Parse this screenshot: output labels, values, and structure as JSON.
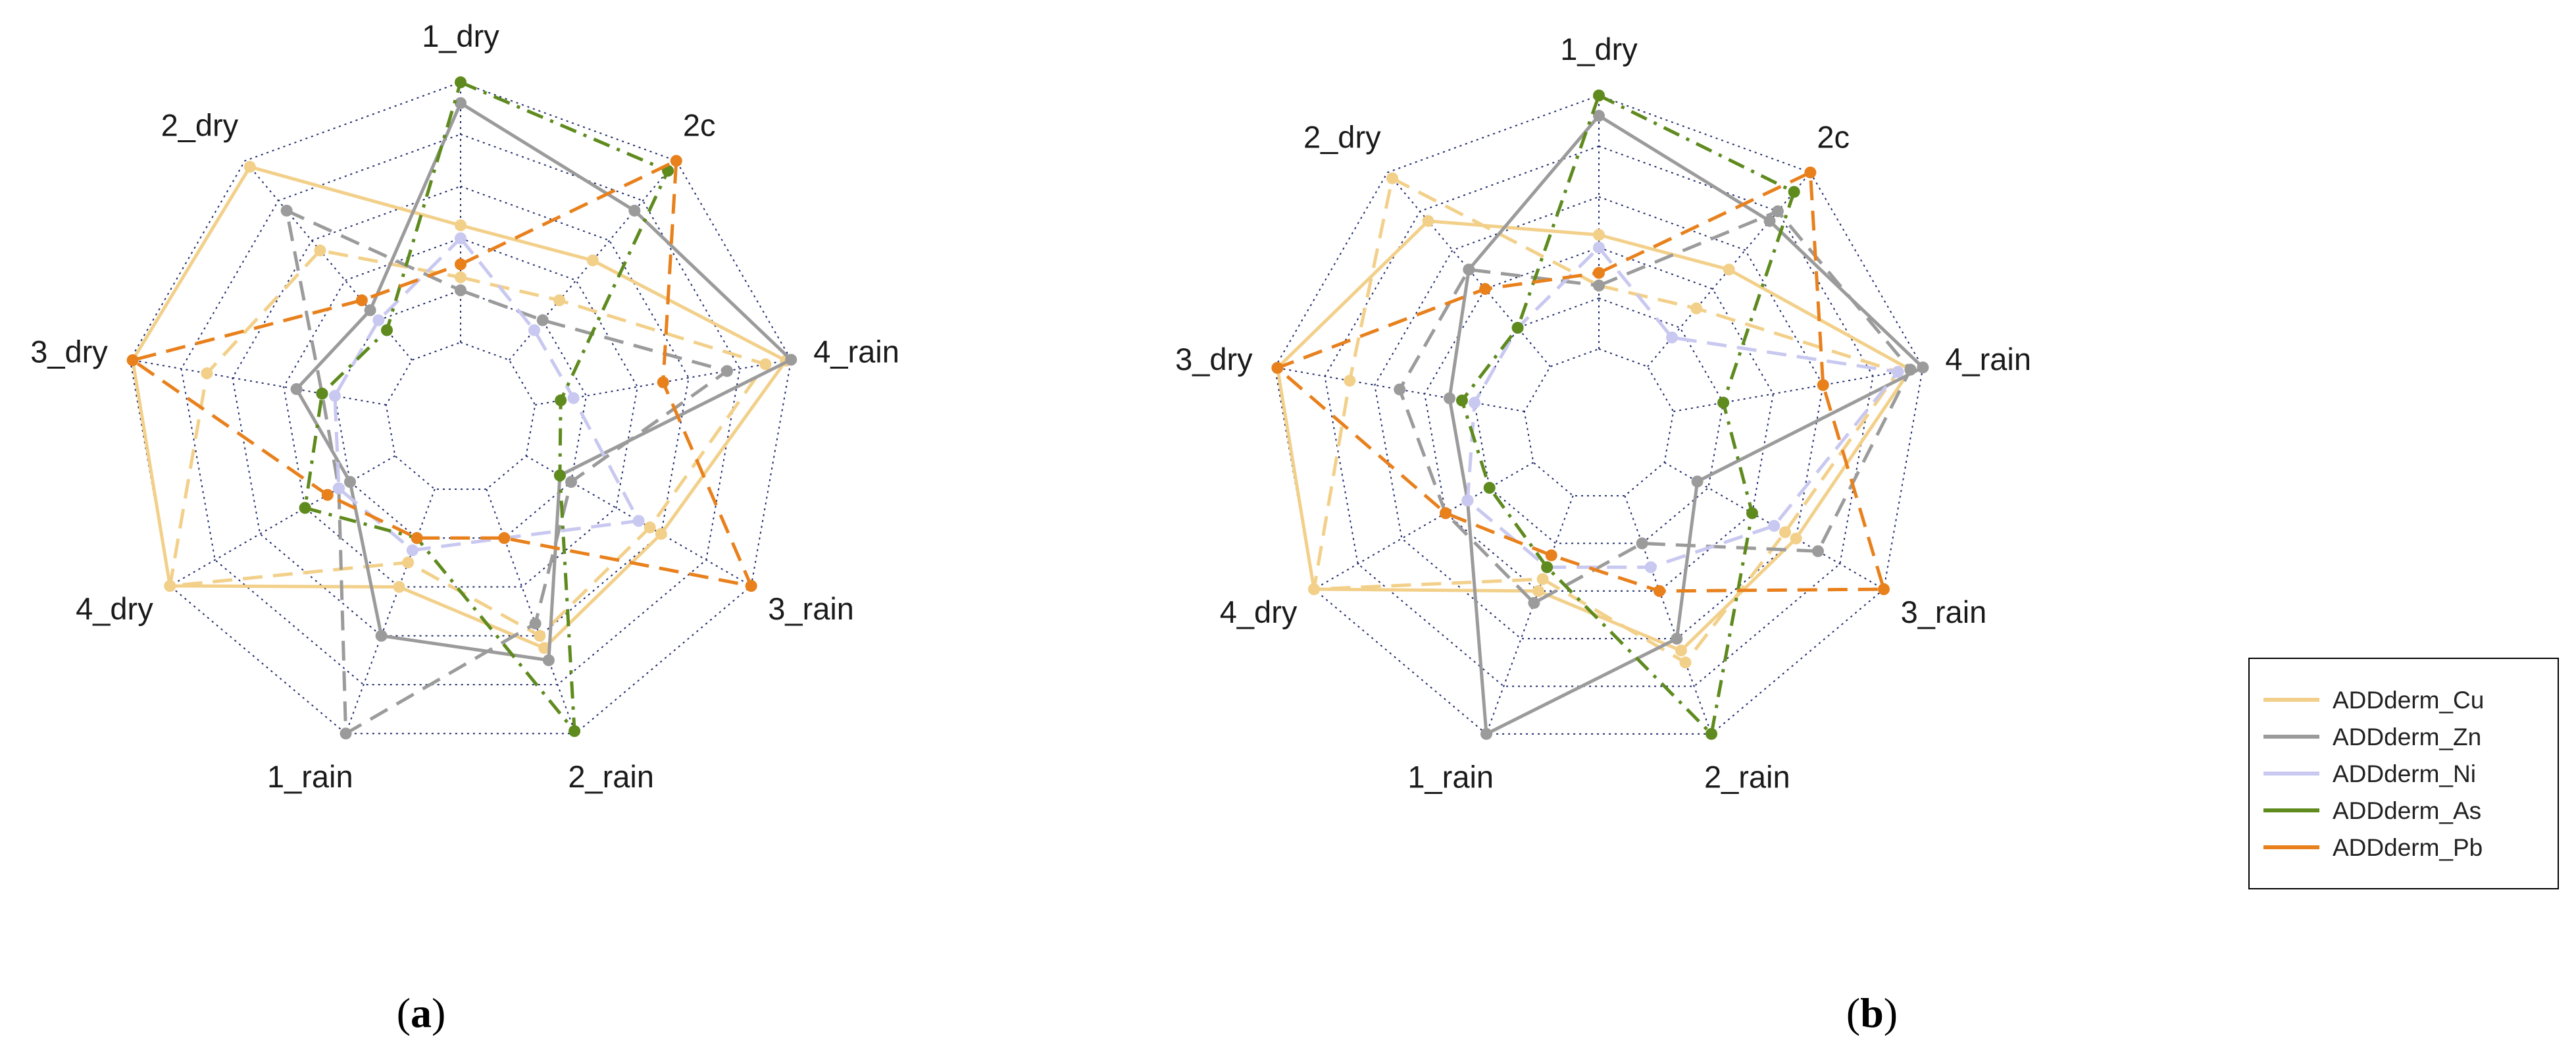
{
  "chart_data": [
    {
      "type": "radar",
      "panel": "(a)",
      "axes": [
        "1_dry",
        "2c",
        "4_rain",
        "3_rain",
        "2_rain",
        "1_rain",
        "4_dry",
        "3_dry",
        "2_dry"
      ],
      "rings": 5,
      "grid": true,
      "series": [
        {
          "name": "ADDderm_Cu",
          "values": [
            0.45,
            0.5,
            0.98,
            0.6,
            0.65,
            0.4,
            1.0,
            0.99,
            0.97
          ],
          "style": "solid"
        },
        {
          "name": "ADDderm_Cu",
          "values": [
            0.25,
            0.3,
            0.9,
            0.55,
            0.6,
            0.3,
            1.0,
            0.7,
            0.55
          ],
          "style": "dashed"
        },
        {
          "name": "ADDderm_Zn",
          "values": [
            0.92,
            0.75,
            1.0,
            0.15,
            0.7,
            0.6,
            0.2,
            0.35,
            0.25
          ],
          "style": "solid"
        },
        {
          "name": "ADDderm_Zn",
          "values": [
            0.2,
            0.2,
            0.75,
            0.2,
            0.55,
            1.0,
            0.25,
            0.25,
            0.75
          ],
          "style": "dashed"
        },
        {
          "name": "ADDderm_Ni",
          "values": [
            0.4,
            0.15,
            0.15,
            0.5,
            0.2,
            0.25,
            0.25,
            0.2,
            0.2
          ],
          "style": "dashed"
        },
        {
          "name": "ADDderm_As",
          "values": [
            1.0,
            0.95,
            0.1,
            0.15,
            0.99,
            0.2,
            0.4,
            0.25,
            0.15
          ],
          "style": "dashdot"
        },
        {
          "name": "ADDderm_Pb",
          "values": [
            0.3,
            1.0,
            0.5,
            1.0,
            0.2,
            0.2,
            0.3,
            0.99,
            0.3
          ],
          "style": "dashed"
        }
      ]
    },
    {
      "type": "radar",
      "panel": "(b)",
      "axes": [
        "1_dry",
        "2c",
        "4_rain",
        "3_rain",
        "2_rain",
        "1_rain",
        "4_dry",
        "3_dry",
        "2_dry"
      ],
      "rings": 5,
      "grid": true,
      "series": [
        {
          "name": "ADDderm_Cu",
          "values": [
            0.45,
            0.5,
            0.95,
            0.6,
            0.65,
            0.4,
            1.0,
            0.99,
            0.75
          ],
          "style": "solid"
        },
        {
          "name": "ADDderm_Cu",
          "values": [
            0.25,
            0.3,
            0.9,
            0.55,
            0.7,
            0.35,
            1.0,
            0.7,
            0.97
          ],
          "style": "dashed"
        },
        {
          "name": "ADDderm_Zn",
          "values": [
            0.92,
            0.75,
            1.0,
            0.15,
            0.6,
            1.0,
            0.3,
            0.3,
            0.5
          ],
          "style": "solid"
        },
        {
          "name": "ADDderm_Zn",
          "values": [
            0.25,
            0.8,
            0.95,
            0.7,
            0.2,
            0.45,
            0.4,
            0.5,
            0.5
          ],
          "style": "dashed"
        },
        {
          "name": "ADDderm_Ni",
          "values": [
            0.4,
            0.15,
            0.9,
            0.5,
            0.3,
            0.3,
            0.3,
            0.2,
            0.2
          ],
          "style": "dashed"
        },
        {
          "name": "ADDderm_As",
          "values": [
            1.0,
            0.9,
            0.2,
            0.4,
            1.0,
            0.3,
            0.2,
            0.25,
            0.2
          ],
          "style": "dashdot"
        },
        {
          "name": "ADDderm_Pb",
          "values": [
            0.3,
            1.0,
            0.6,
            1.0,
            0.4,
            0.25,
            0.4,
            0.99,
            0.4
          ],
          "style": "dashed"
        }
      ]
    }
  ],
  "legend": {
    "position": "right",
    "items": [
      {
        "name": "ADDderm_Cu",
        "color": "#f2d08a"
      },
      {
        "name": "ADDderm_Zn",
        "color": "#9b9b9b"
      },
      {
        "name": "ADDderm_Ni",
        "color": "#c8c8f0"
      },
      {
        "name": "ADDderm_As",
        "color": "#5e8a1e"
      },
      {
        "name": "ADDderm_Pb",
        "color": "#e8801c"
      }
    ]
  },
  "colors": {
    "ADDderm_Cu": "#f2d08a",
    "ADDderm_Zn": "#9b9b9b",
    "ADDderm_Ni": "#c8c8f0",
    "ADDderm_As": "#5e8a1e",
    "ADDderm_Pb": "#e8801c",
    "grid": "#1f2a6b"
  },
  "panel_labels": [
    {
      "open": "(",
      "letter": "a",
      "close": ")"
    },
    {
      "open": "(",
      "letter": "b",
      "close": ")"
    }
  ]
}
